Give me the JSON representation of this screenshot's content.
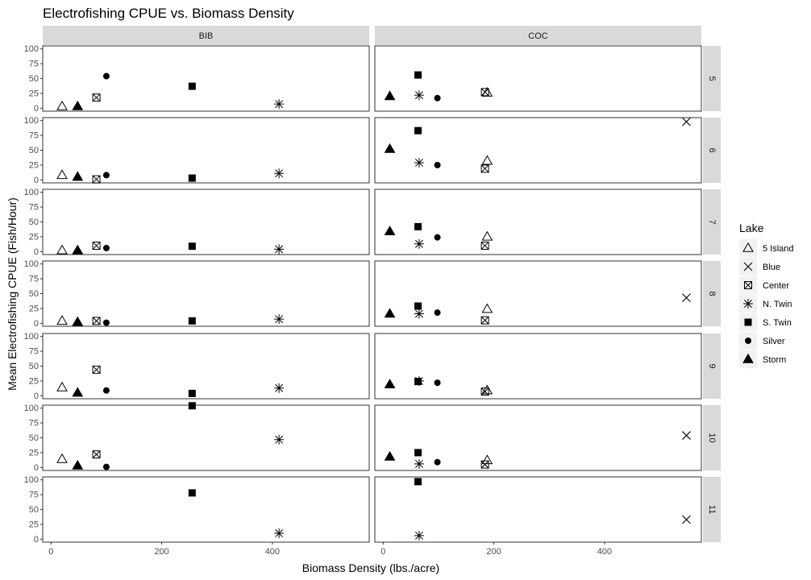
{
  "chart_data": {
    "type": "scatter",
    "title": "Electrofishing CPUE vs. Biomass Density",
    "xlabel": "Biomass Density (lbs./acre)",
    "ylabel": "Mean Electrofishing CPUE (Fish/Hour)",
    "xlim": [
      -15,
      575
    ],
    "ylim": [
      -5,
      105
    ],
    "x_ticks": [
      0,
      200,
      400
    ],
    "y_ticks": [
      0,
      25,
      50,
      75,
      100
    ],
    "grid": false,
    "legend": {
      "title": "Lake",
      "placement": "right",
      "items": [
        {
          "label": "5 Island",
          "shape": "open-triangle"
        },
        {
          "label": "Blue",
          "shape": "x"
        },
        {
          "label": "Center",
          "shape": "boxed-x"
        },
        {
          "label": "N. Twin",
          "shape": "asterisk"
        },
        {
          "label": "S. Twin",
          "shape": "filled-square"
        },
        {
          "label": "Silver",
          "shape": "filled-circle"
        },
        {
          "label": "Storm",
          "shape": "filled-triangle"
        }
      ]
    },
    "facet_columns": [
      "BIB",
      "COC"
    ],
    "facet_rows": [
      "5",
      "6",
      "7",
      "8",
      "9",
      "10",
      "11"
    ],
    "panels": [
      {
        "col": "BIB",
        "row": "5",
        "points": [
          {
            "lake": "5 Island",
            "x": 20,
            "y": 3
          },
          {
            "lake": "Storm",
            "x": 48,
            "y": 3
          },
          {
            "lake": "Center",
            "x": 82,
            "y": 18
          },
          {
            "lake": "Silver",
            "x": 100,
            "y": 54
          },
          {
            "lake": "S. Twin",
            "x": 255,
            "y": 37
          },
          {
            "lake": "N. Twin",
            "x": 412,
            "y": 7
          }
        ]
      },
      {
        "col": "BIB",
        "row": "6",
        "points": [
          {
            "lake": "5 Island",
            "x": 20,
            "y": 8
          },
          {
            "lake": "Storm",
            "x": 48,
            "y": 5
          },
          {
            "lake": "Center",
            "x": 82,
            "y": 1
          },
          {
            "lake": "Silver",
            "x": 100,
            "y": 8
          },
          {
            "lake": "S. Twin",
            "x": 255,
            "y": 3
          },
          {
            "lake": "N. Twin",
            "x": 412,
            "y": 11
          }
        ]
      },
      {
        "col": "BIB",
        "row": "7",
        "points": [
          {
            "lake": "5 Island",
            "x": 20,
            "y": 2
          },
          {
            "lake": "Storm",
            "x": 48,
            "y": 2
          },
          {
            "lake": "Center",
            "x": 82,
            "y": 10
          },
          {
            "lake": "Silver",
            "x": 100,
            "y": 6
          },
          {
            "lake": "S. Twin",
            "x": 255,
            "y": 9
          },
          {
            "lake": "N. Twin",
            "x": 412,
            "y": 4
          }
        ]
      },
      {
        "col": "BIB",
        "row": "8",
        "points": [
          {
            "lake": "5 Island",
            "x": 20,
            "y": 4
          },
          {
            "lake": "Storm",
            "x": 48,
            "y": 2
          },
          {
            "lake": "Center",
            "x": 82,
            "y": 4
          },
          {
            "lake": "Silver",
            "x": 100,
            "y": 1
          },
          {
            "lake": "S. Twin",
            "x": 255,
            "y": 4
          },
          {
            "lake": "N. Twin",
            "x": 412,
            "y": 7
          }
        ]
      },
      {
        "col": "BIB",
        "row": "9",
        "points": [
          {
            "lake": "5 Island",
            "x": 20,
            "y": 14
          },
          {
            "lake": "Storm",
            "x": 48,
            "y": 5
          },
          {
            "lake": "Center",
            "x": 82,
            "y": 44
          },
          {
            "lake": "Silver",
            "x": 100,
            "y": 9
          },
          {
            "lake": "S. Twin",
            "x": 255,
            "y": 4
          },
          {
            "lake": "N. Twin",
            "x": 412,
            "y": 13
          }
        ]
      },
      {
        "col": "BIB",
        "row": "10",
        "points": [
          {
            "lake": "5 Island",
            "x": 20,
            "y": 14
          },
          {
            "lake": "Storm",
            "x": 48,
            "y": 3
          },
          {
            "lake": "Center",
            "x": 82,
            "y": 22
          },
          {
            "lake": "Silver",
            "x": 100,
            "y": 1
          },
          {
            "lake": "S. Twin",
            "x": 255,
            "y": 104
          },
          {
            "lake": "N. Twin",
            "x": 412,
            "y": 47
          }
        ]
      },
      {
        "col": "BIB",
        "row": "11",
        "points": [
          {
            "lake": "S. Twin",
            "x": 255,
            "y": 78
          },
          {
            "lake": "N. Twin",
            "x": 412,
            "y": 10
          }
        ]
      },
      {
        "col": "COC",
        "row": "5",
        "points": [
          {
            "lake": "Storm",
            "x": 12,
            "y": 20
          },
          {
            "lake": "S. Twin",
            "x": 63,
            "y": 56
          },
          {
            "lake": "N. Twin",
            "x": 65,
            "y": 22
          },
          {
            "lake": "Silver",
            "x": 98,
            "y": 17
          },
          {
            "lake": "Center",
            "x": 184,
            "y": 27
          },
          {
            "lake": "5 Island",
            "x": 188,
            "y": 26
          }
        ]
      },
      {
        "col": "COC",
        "row": "6",
        "points": [
          {
            "lake": "Storm",
            "x": 12,
            "y": 52
          },
          {
            "lake": "S. Twin",
            "x": 63,
            "y": 83
          },
          {
            "lake": "N. Twin",
            "x": 65,
            "y": 29
          },
          {
            "lake": "Silver",
            "x": 98,
            "y": 25
          },
          {
            "lake": "Center",
            "x": 184,
            "y": 19
          },
          {
            "lake": "5 Island",
            "x": 188,
            "y": 32
          },
          {
            "lake": "Blue",
            "x": 548,
            "y": 98
          }
        ]
      },
      {
        "col": "COC",
        "row": "7",
        "points": [
          {
            "lake": "Storm",
            "x": 12,
            "y": 34
          },
          {
            "lake": "S. Twin",
            "x": 63,
            "y": 42
          },
          {
            "lake": "N. Twin",
            "x": 65,
            "y": 13
          },
          {
            "lake": "Silver",
            "x": 98,
            "y": 24
          },
          {
            "lake": "Center",
            "x": 184,
            "y": 10
          },
          {
            "lake": "5 Island",
            "x": 188,
            "y": 25
          }
        ]
      },
      {
        "col": "COC",
        "row": "8",
        "points": [
          {
            "lake": "Storm",
            "x": 12,
            "y": 16
          },
          {
            "lake": "S. Twin",
            "x": 63,
            "y": 29
          },
          {
            "lake": "N. Twin",
            "x": 65,
            "y": 16
          },
          {
            "lake": "Silver",
            "x": 98,
            "y": 18
          },
          {
            "lake": "Center",
            "x": 184,
            "y": 5
          },
          {
            "lake": "5 Island",
            "x": 188,
            "y": 24
          },
          {
            "lake": "Blue",
            "x": 548,
            "y": 43
          }
        ]
      },
      {
        "col": "COC",
        "row": "9",
        "points": [
          {
            "lake": "Storm",
            "x": 12,
            "y": 19
          },
          {
            "lake": "S. Twin",
            "x": 63,
            "y": 24
          },
          {
            "lake": "N. Twin",
            "x": 65,
            "y": 25
          },
          {
            "lake": "Silver",
            "x": 98,
            "y": 22
          },
          {
            "lake": "Center",
            "x": 184,
            "y": 7
          },
          {
            "lake": "5 Island",
            "x": 188,
            "y": 9
          }
        ]
      },
      {
        "col": "COC",
        "row": "10",
        "points": [
          {
            "lake": "Storm",
            "x": 12,
            "y": 18
          },
          {
            "lake": "S. Twin",
            "x": 63,
            "y": 25
          },
          {
            "lake": "N. Twin",
            "x": 65,
            "y": 6
          },
          {
            "lake": "Silver",
            "x": 98,
            "y": 9
          },
          {
            "lake": "Center",
            "x": 184,
            "y": 5
          },
          {
            "lake": "5 Island",
            "x": 188,
            "y": 12
          },
          {
            "lake": "Blue",
            "x": 548,
            "y": 54
          }
        ]
      },
      {
        "col": "COC",
        "row": "11",
        "points": [
          {
            "lake": "S. Twin",
            "x": 63,
            "y": 97
          },
          {
            "lake": "N. Twin",
            "x": 65,
            "y": 6
          },
          {
            "lake": "Blue",
            "x": 548,
            "y": 33
          }
        ]
      }
    ]
  },
  "colors": {
    "strip_fill": "#d9d9d9",
    "panel_border": "#333333",
    "point": "#000000",
    "tick_text": "#4d4d4d"
  }
}
